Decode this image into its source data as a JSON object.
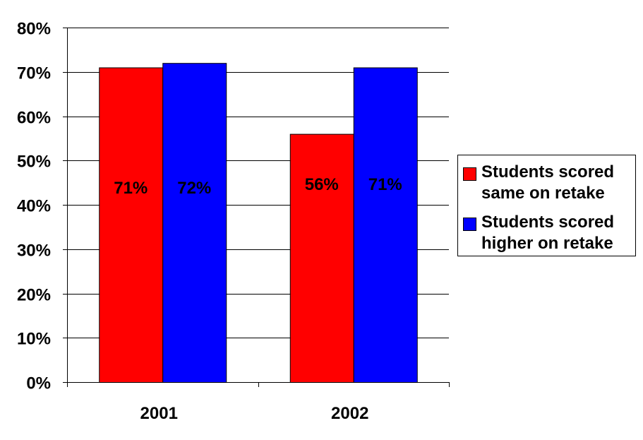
{
  "chart_data": {
    "type": "bar",
    "title": "",
    "xlabel": "",
    "ylabel": "",
    "categories": [
      "2001",
      "2002"
    ],
    "series": [
      {
        "name": "Students scored same on retake",
        "values": [
          71,
          56
        ],
        "labels": [
          "71%",
          "56%"
        ],
        "color": "#ff0000"
      },
      {
        "name": "Students scored higher on retake",
        "values": [
          72,
          71
        ],
        "labels": [
          "72%",
          "71%"
        ],
        "color": "#0000ff"
      }
    ],
    "ylim": [
      0,
      80
    ],
    "yticks": [
      0,
      10,
      20,
      30,
      40,
      50,
      60,
      70,
      80
    ],
    "ytick_labels": [
      "0%",
      "10%",
      "20%",
      "30%",
      "40%",
      "50%",
      "60%",
      "70%",
      "80%"
    ],
    "grid": true,
    "legend_position": "right"
  }
}
